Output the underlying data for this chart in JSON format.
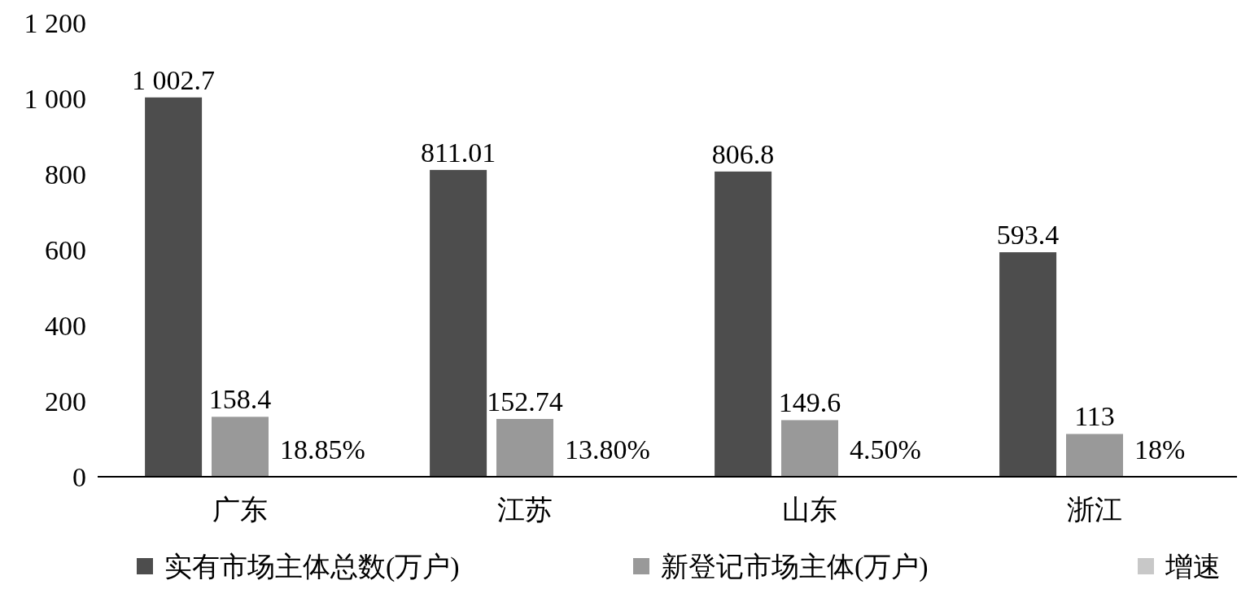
{
  "chart_data": {
    "type": "bar",
    "categories": [
      "广东",
      "江苏",
      "山东",
      "浙江"
    ],
    "series": [
      {
        "name": "实有市场主体总数(万户)",
        "color": "#4d4d4d",
        "values": [
          1002.7,
          811.01,
          806.8,
          593.4
        ],
        "value_labels": [
          "1 002.7",
          "811.01",
          "806.8",
          "593.4"
        ]
      },
      {
        "name": "新登记市场主体(万户)",
        "color": "#999999",
        "values": [
          158.4,
          152.74,
          149.6,
          113
        ],
        "value_labels": [
          "158.4",
          "152.74",
          "149.6",
          "113"
        ]
      },
      {
        "name": "增速",
        "color": "#c8c8c8",
        "values": [
          0.1885,
          0.138,
          0.045,
          0.18
        ],
        "value_labels": [
          "18.85%",
          "13.80%",
          "4.50%",
          "18%"
        ]
      }
    ],
    "ylim": [
      0,
      1200
    ],
    "yticks": [
      0,
      200,
      400,
      600,
      800,
      {
        "value": 1000,
        "label": "1 000"
      },
      {
        "value": 1200,
        "label": "1 200"
      }
    ],
    "legend": "bottom"
  }
}
